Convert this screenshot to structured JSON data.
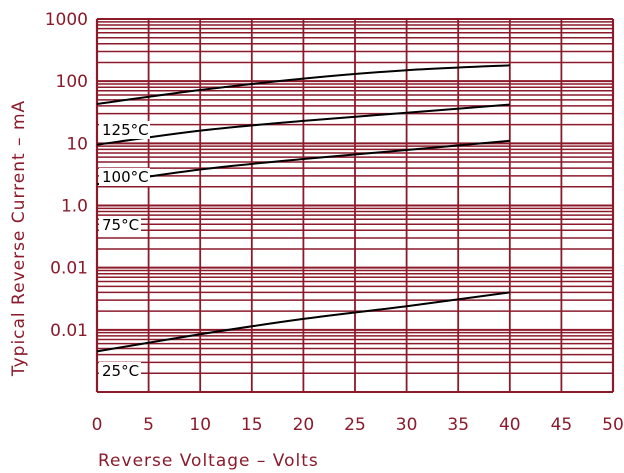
{
  "colors": {
    "grid": "#8b1a2b",
    "curve": "#000000",
    "label": "#8b1a2b",
    "background": "#ffffff"
  },
  "chart_data": {
    "type": "line",
    "title": "",
    "xlabel": "Reverse Voltage – Volts",
    "ylabel": "Typical Reverse Current – mA",
    "xlim": [
      0,
      50
    ],
    "ylim": [
      0.001,
      1000
    ],
    "y_scale": "log",
    "grid": true,
    "x_ticks": [
      "0",
      "5",
      "10",
      "15",
      "20",
      "25",
      "30",
      "35",
      "40",
      "45",
      "50"
    ],
    "y_ticks": [
      "1000",
      "100",
      "10",
      "1.0",
      "0.01",
      "0.01"
    ],
    "series": [
      {
        "name": "125°C",
        "x": [
          0,
          10,
          20,
          30,
          40
        ],
        "y": [
          43,
          72,
          110,
          150,
          180
        ]
      },
      {
        "name": "100°C",
        "x": [
          0,
          10,
          20,
          30,
          40
        ],
        "y": [
          9.5,
          16,
          23,
          31,
          42
        ]
      },
      {
        "name": "75°C",
        "x": [
          0,
          10,
          20,
          30,
          40
        ],
        "y": [
          2.2,
          3.8,
          5.6,
          7.8,
          11
        ]
      },
      {
        "name": "25°C",
        "x": [
          0,
          10,
          20,
          30,
          40
        ],
        "y": [
          0.0045,
          0.0085,
          0.015,
          0.024,
          0.04
        ]
      }
    ]
  }
}
